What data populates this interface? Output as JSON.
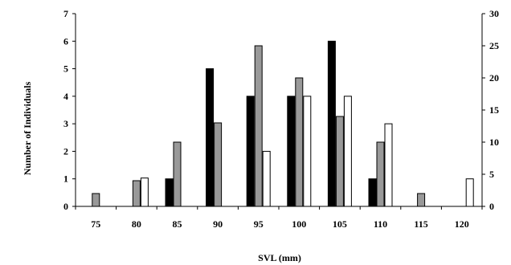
{
  "chart_data": {
    "type": "bar",
    "xlabel": "SVL (mm)",
    "ylabel": "Number of Individuals",
    "y2label": "",
    "categories": [
      "75",
      "80",
      "85",
      "90",
      "95",
      "100",
      "105",
      "110",
      "115",
      "120"
    ],
    "ylim": [
      0,
      7
    ],
    "yticks": [
      "0",
      "1",
      "2",
      "3",
      "4",
      "5",
      "6",
      "7"
    ],
    "y2lim": [
      0,
      30
    ],
    "y2ticks": [
      "0",
      "5",
      "10",
      "15",
      "20",
      "25",
      "30"
    ],
    "grid": false,
    "legend": "none",
    "series": [
      {
        "axis": "left",
        "color": "#000000",
        "values": [
          0,
          0,
          1,
          5,
          4,
          4,
          6,
          1,
          0,
          0
        ]
      },
      {
        "axis": "right",
        "color": "#999999",
        "values": [
          2,
          4,
          10,
          13,
          25,
          20,
          14,
          10,
          2,
          0
        ]
      },
      {
        "axis": "left",
        "color": "#ffffff",
        "values": [
          0,
          1.03,
          0,
          0,
          2,
          4,
          4,
          3,
          0,
          1
        ]
      }
    ]
  }
}
